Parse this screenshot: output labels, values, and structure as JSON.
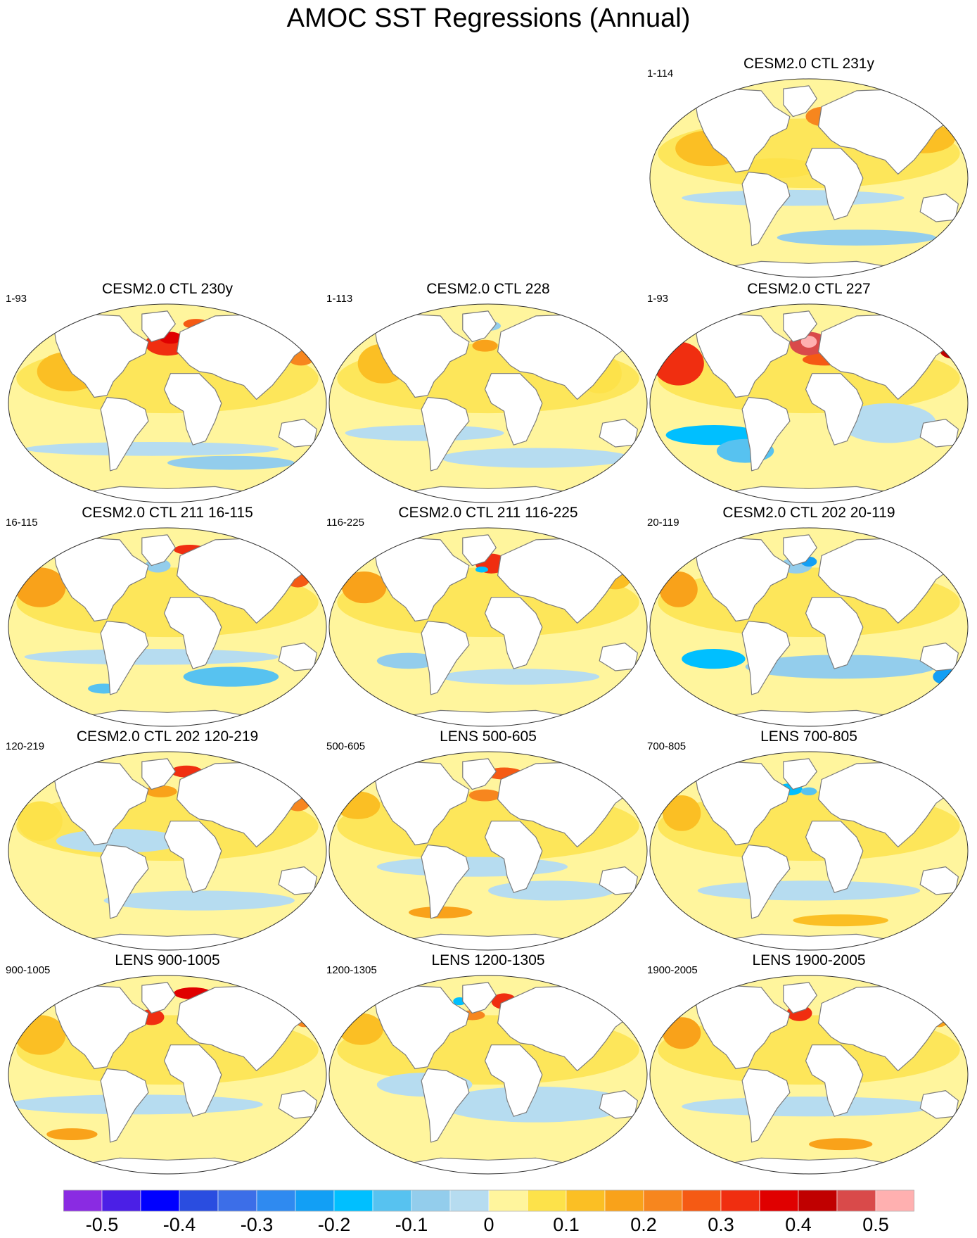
{
  "title": "AMOC SST Regressions (Annual)",
  "panels": [
    {
      "title": "CESM2.0 CTL 231y",
      "range": "1-114"
    },
    {
      "title": "CESM2.0 CTL 230y",
      "range": "1-93"
    },
    {
      "title": "CESM2.0 CTL 228",
      "range": "1-113"
    },
    {
      "title": "CESM2.0 CTL 227",
      "range": "1-93"
    },
    {
      "title": "CESM2.0 CTL 211 16-115",
      "range": "16-115"
    },
    {
      "title": "CESM2.0 CTL 211 116-225",
      "range": "116-225"
    },
    {
      "title": "CESM2.0 CTL 202 20-119",
      "range": "20-119"
    },
    {
      "title": "CESM2.0 CTL 202 120-219",
      "range": "120-219"
    },
    {
      "title": "LENS 500-605",
      "range": "500-605"
    },
    {
      "title": "LENS 700-805",
      "range": "700-805"
    },
    {
      "title": "LENS 900-1005",
      "range": "900-1005"
    },
    {
      "title": "LENS 1200-1305",
      "range": "1200-1305"
    },
    {
      "title": "LENS 1900-2005",
      "range": "1900-2005"
    }
  ],
  "colorbar": {
    "labels": [
      "-0.5",
      "-0.4",
      "-0.3",
      "-0.2",
      "-0.1",
      "0",
      "0.1",
      "0.2",
      "0.3",
      "0.4",
      "0.5"
    ],
    "colors": [
      "#8a2be2",
      "#4b1fe6",
      "#0000ff",
      "#2a4de0",
      "#3c6ee8",
      "#2f8af0",
      "#129ff5",
      "#00bfff",
      "#57c2f0",
      "#93cdec",
      "#b6dcf0",
      "#fff59d",
      "#fde24a",
      "#fbbf24",
      "#f9a21a",
      "#f7861e",
      "#f55a14",
      "#f02e10",
      "#e00000",
      "#c00000",
      "#d94a4a",
      "#ffb0b0"
    ]
  }
}
